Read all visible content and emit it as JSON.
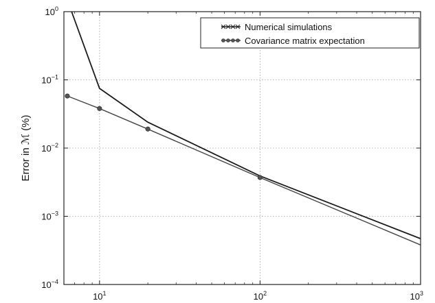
{
  "chart_data": {
    "type": "line",
    "title": "",
    "xlabel": "",
    "ylabel": "Error in ℳ (%)",
    "xscale": "log",
    "yscale": "log",
    "xlim": [
      6,
      1000
    ],
    "ylim": [
      0.0001,
      1
    ],
    "grid": true,
    "legend_position": "top-right",
    "x_ticks": [
      {
        "value": 10,
        "base": "10",
        "exp": "1"
      },
      {
        "value": 100,
        "base": "10",
        "exp": "2"
      },
      {
        "value": 1000,
        "base": "10",
        "exp": "3"
      }
    ],
    "y_ticks": [
      {
        "value": 1,
        "base": "10",
        "exp": "0"
      },
      {
        "value": 0.1,
        "base": "10",
        "exp": "−1"
      },
      {
        "value": 0.01,
        "base": "10",
        "exp": "−2"
      },
      {
        "value": 0.001,
        "base": "10",
        "exp": "−3"
      },
      {
        "value": 0.0001,
        "base": "10",
        "exp": "−4"
      }
    ],
    "series": [
      {
        "name": "Numerical simulations",
        "color": "#1a1a1a",
        "marker": "x",
        "x": [
          6.7,
          10,
          20,
          100,
          1000
        ],
        "y": [
          1.0,
          0.075,
          0.024,
          0.0039,
          0.00047
        ]
      },
      {
        "name": "Covariance matrix expectation",
        "color": "#444444",
        "marker": "circle",
        "x": [
          6.3,
          10,
          20,
          100,
          1000
        ],
        "y": [
          0.058,
          0.038,
          0.019,
          0.0037,
          0.00038
        ],
        "marked_points": [
          [
            6.3,
            0.058
          ],
          [
            10,
            0.038
          ],
          [
            20,
            0.019
          ],
          [
            100,
            0.0037
          ]
        ]
      }
    ]
  }
}
